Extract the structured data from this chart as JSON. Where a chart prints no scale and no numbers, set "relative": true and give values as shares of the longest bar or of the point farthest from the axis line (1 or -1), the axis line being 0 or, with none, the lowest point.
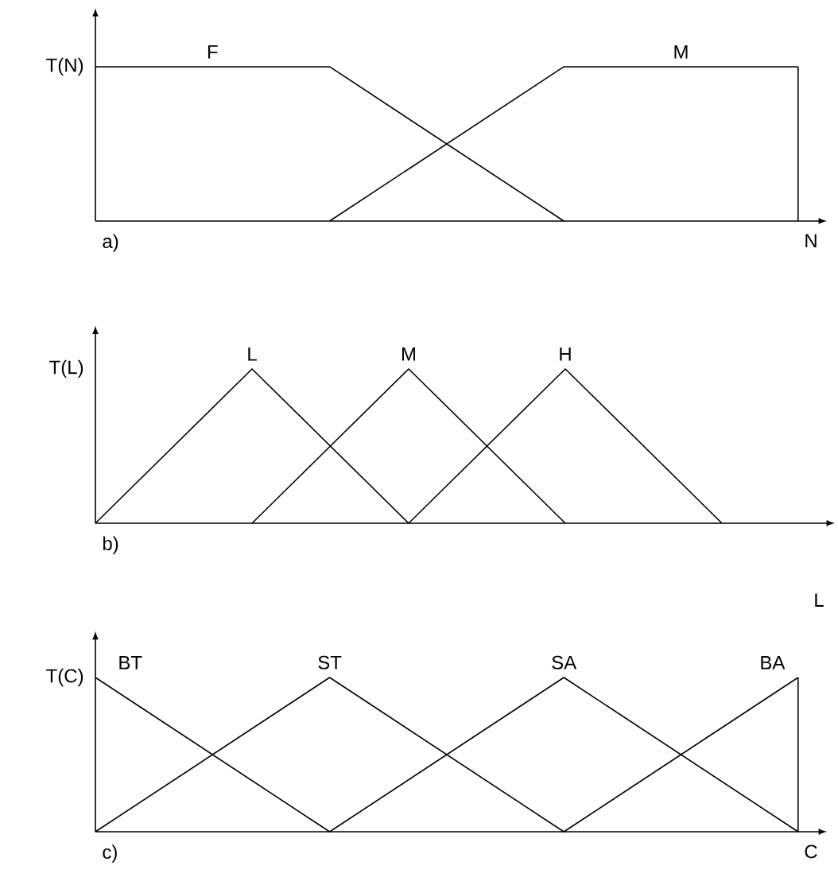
{
  "chart_data": [
    {
      "type": "line",
      "relative": true,
      "ylabel": "T(N)",
      "xlabel": "N",
      "annotations": [
        "a)"
      ],
      "tick_labels": false,
      "categories": [
        null,
        null,
        null,
        null
      ],
      "series": [
        {
          "name": "F",
          "color": "#000000",
          "values": [
            1,
            1,
            0,
            null
          ]
        },
        {
          "name": "M",
          "color": "#000000",
          "values": [
            null,
            0,
            1,
            1
          ]
        }
      ]
    },
    {
      "type": "line",
      "relative": true,
      "ylabel": "T(L)",
      "xlabel": "L",
      "annotations": [
        "b)"
      ],
      "tick_labels": false,
      "categories": [
        null,
        null,
        null,
        null,
        null
      ],
      "series": [
        {
          "name": "L",
          "color": "#000000",
          "values": [
            0,
            1,
            0,
            null,
            null
          ]
        },
        {
          "name": "M",
          "color": "#000000",
          "values": [
            null,
            0,
            1,
            0,
            null
          ]
        },
        {
          "name": "H",
          "color": "#000000",
          "values": [
            null,
            null,
            0,
            1,
            0
          ]
        }
      ]
    },
    {
      "type": "line",
      "relative": true,
      "ylabel": "T(C)",
      "xlabel": "C",
      "annotations": [
        "c)"
      ],
      "tick_labels": false,
      "categories": [
        null,
        null,
        null,
        null
      ],
      "series": [
        {
          "name": "BT",
          "color": "#000000",
          "values": [
            1,
            0,
            null,
            null
          ]
        },
        {
          "name": "ST",
          "color": "#000000",
          "values": [
            0,
            1,
            0,
            null
          ]
        },
        {
          "name": "SA",
          "color": "#000000",
          "values": [
            null,
            0,
            1,
            0
          ]
        },
        {
          "name": "BA",
          "color": "#000000",
          "values": [
            null,
            null,
            0,
            1
          ]
        }
      ]
    }
  ]
}
